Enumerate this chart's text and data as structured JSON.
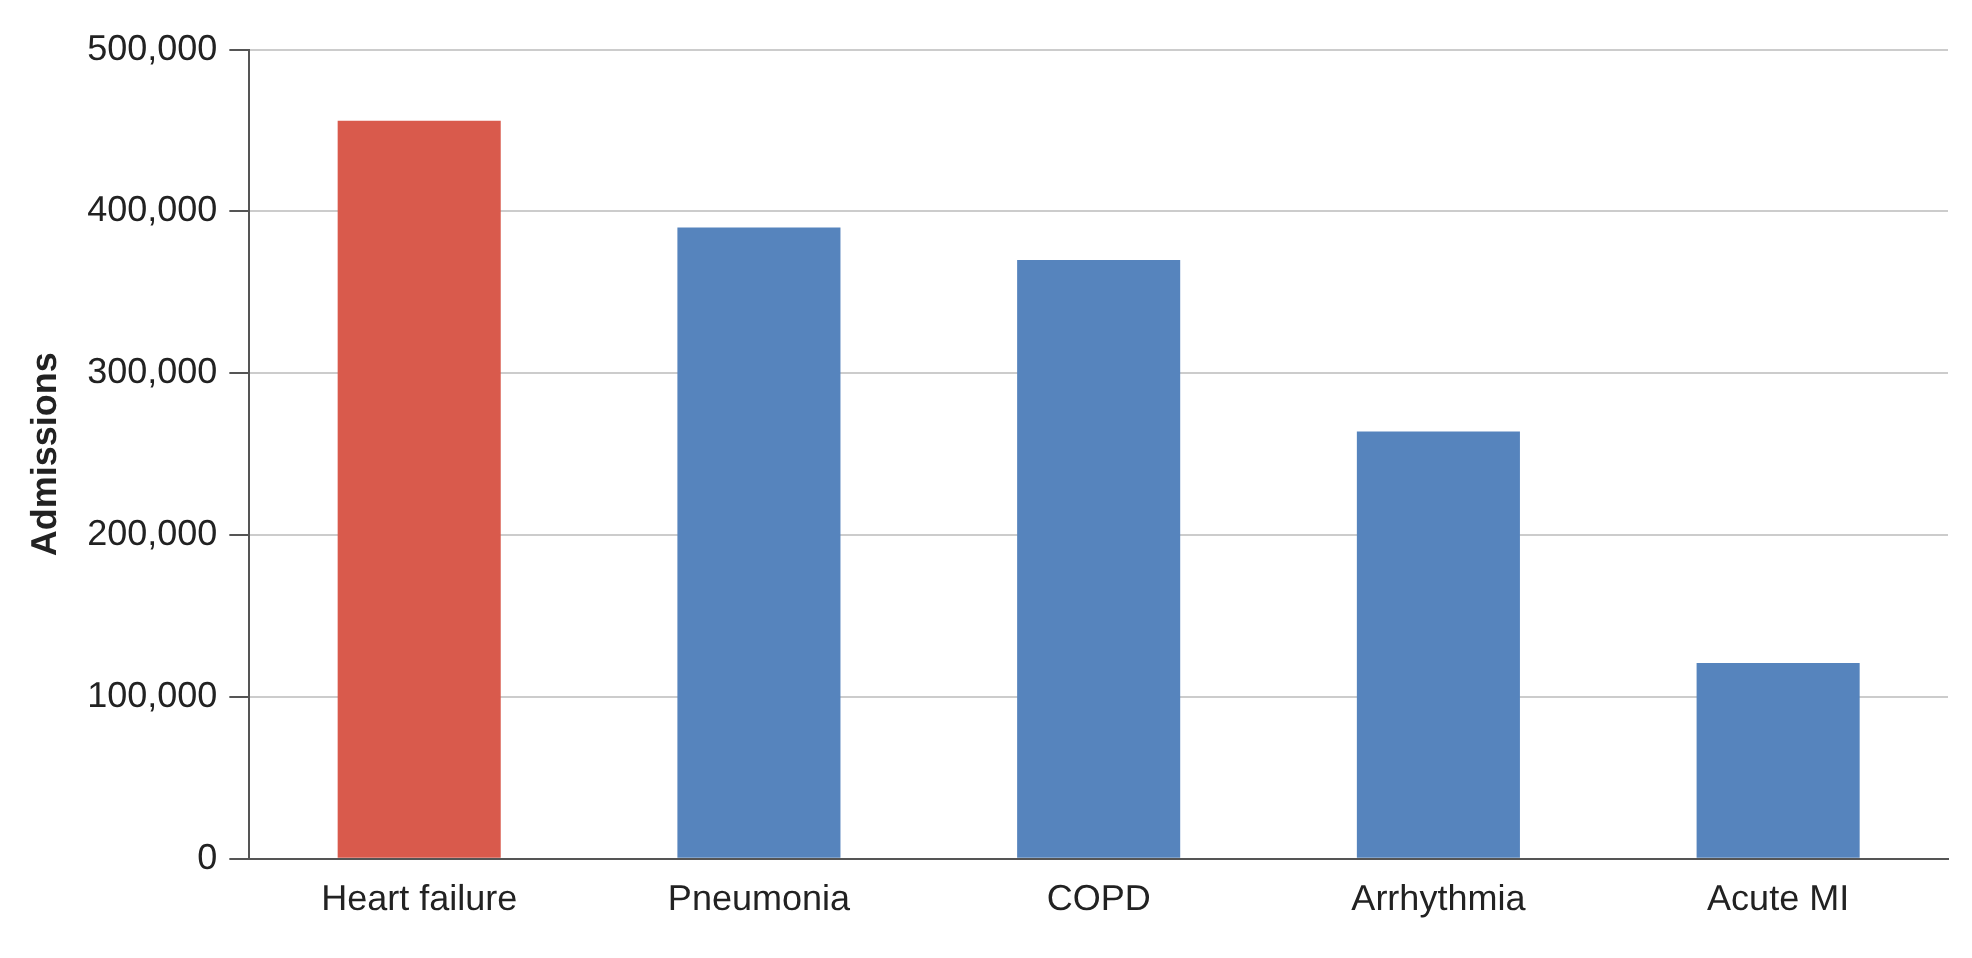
{
  "chart_data": {
    "type": "bar",
    "ylabel": "Admissions",
    "categories": [
      "Heart failure",
      "Pneumonia",
      "COPD",
      "Arrhythmia",
      "Acute MI"
    ],
    "values": [
      456000,
      390000,
      370000,
      264000,
      121000
    ],
    "colors": [
      "#d95a4c",
      "#5684bd",
      "#5684bd",
      "#5684bd",
      "#5684bd"
    ],
    "ylim": [
      0,
      500000
    ],
    "yticks": [
      0,
      {
        "value": 100000,
        "label": "100,000"
      },
      {
        "value": 200000,
        "label": "200,000"
      },
      {
        "value": 300000,
        "label": "300,000"
      },
      {
        "value": 400000,
        "label": "400,000"
      },
      {
        "value": 500000,
        "label": "500,000"
      }
    ],
    "grid": "y",
    "legend": false
  }
}
